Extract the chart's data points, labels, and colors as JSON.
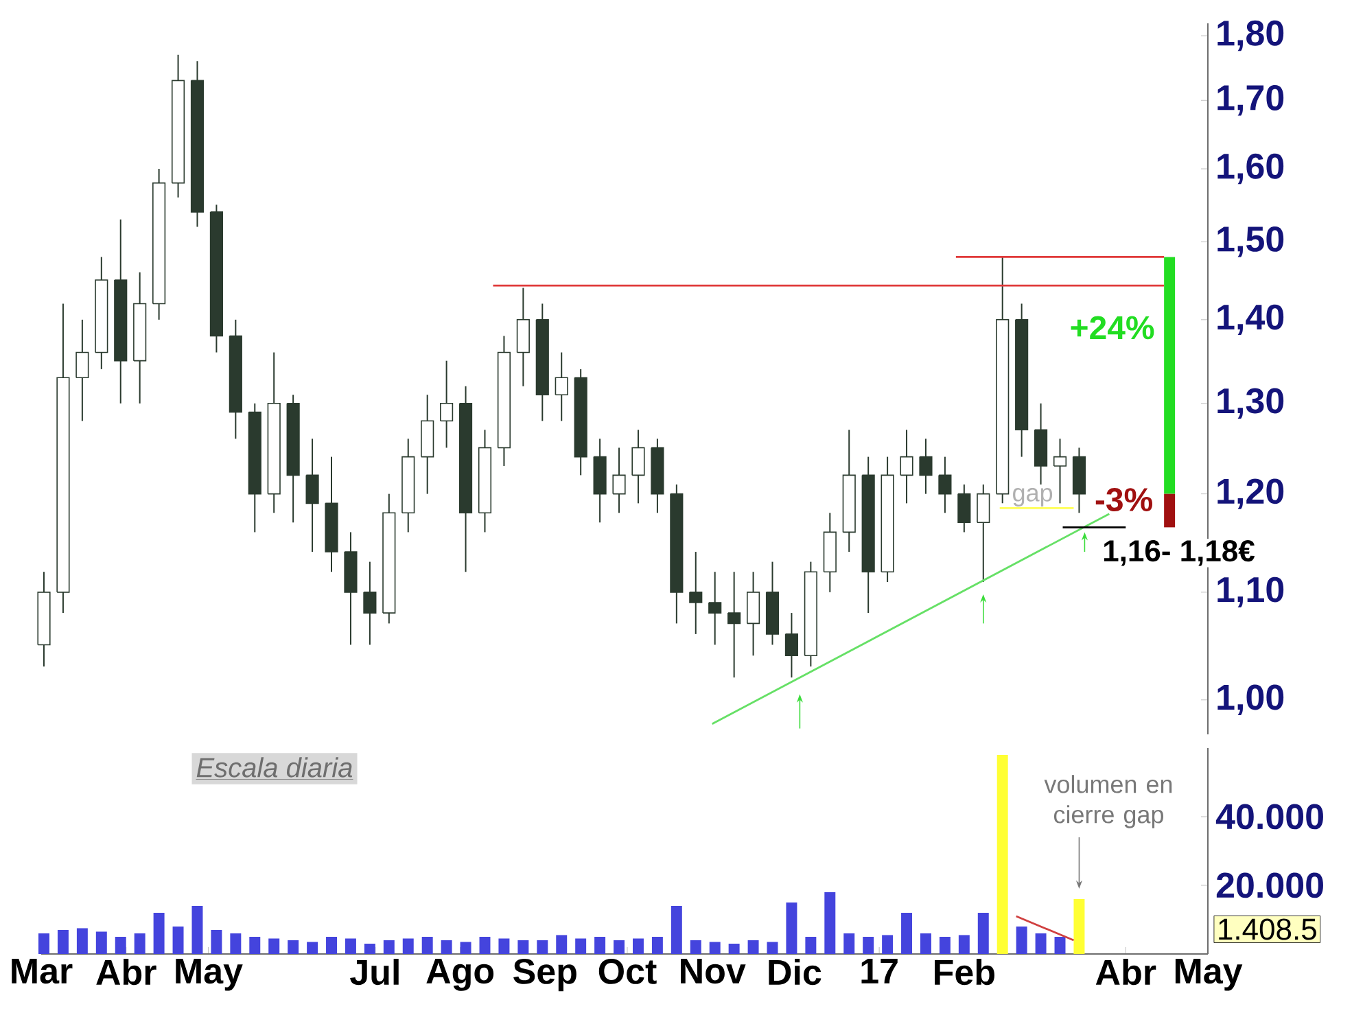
{
  "chart_data": [
    {
      "type": "candlestick",
      "log": true,
      "tick_labels": "y",
      "xlim": [
        "2016-03-01",
        "2017-05-01"
      ],
      "ylim": [
        0.97,
        1.82
      ],
      "yticks": [
        {
          "value": 1.0,
          "label": "1,00"
        },
        {
          "value": 1.1,
          "label": "1,10"
        },
        {
          "value": 1.2,
          "label": "1,20"
        },
        {
          "value": 1.3,
          "label": "1,30"
        },
        {
          "value": 1.4,
          "label": "1,40"
        },
        {
          "value": 1.5,
          "label": "1,50"
        },
        {
          "value": 1.6,
          "label": "1,60"
        },
        {
          "value": 1.7,
          "label": "1,70"
        },
        {
          "value": 1.8,
          "label": "1,80"
        }
      ],
      "series": [
        {
          "color": "#2a3a2e",
          "x": [
            "2016-03-02",
            "2016-03-09",
            "2016-03-16",
            "2016-03-23",
            "2016-03-30",
            "2016-04-06",
            "2016-04-13",
            "2016-04-20",
            "2016-04-27",
            "2016-05-04",
            "2016-05-11",
            "2016-05-18",
            "2016-05-25",
            "2016-06-01",
            "2016-06-08",
            "2016-06-15",
            "2016-06-22",
            "2016-06-29",
            "2016-07-06",
            "2016-07-13",
            "2016-07-20",
            "2016-07-27",
            "2016-08-03",
            "2016-08-10",
            "2016-08-17",
            "2016-08-24",
            "2016-08-31",
            "2016-09-07",
            "2016-09-14",
            "2016-09-21",
            "2016-09-28",
            "2016-10-05",
            "2016-10-12",
            "2016-10-19",
            "2016-10-26",
            "2016-11-02",
            "2016-11-09",
            "2016-11-16",
            "2016-11-23",
            "2016-11-30",
            "2016-12-07",
            "2016-12-14",
            "2016-12-21",
            "2016-12-28",
            "2017-01-04",
            "2017-01-11",
            "2017-01-18",
            "2017-01-25",
            "2017-02-01",
            "2017-02-08",
            "2017-02-15",
            "2017-02-22",
            "2017-03-01",
            "2017-03-08",
            "2017-03-15"
          ],
          "ohlc": [
            [
              1.05,
              1.12,
              1.03,
              1.1
            ],
            [
              1.1,
              1.42,
              1.08,
              1.33
            ],
            [
              1.33,
              1.4,
              1.28,
              1.36
            ],
            [
              1.36,
              1.48,
              1.34,
              1.45
            ],
            [
              1.45,
              1.53,
              1.3,
              1.35
            ],
            [
              1.35,
              1.46,
              1.3,
              1.42
            ],
            [
              1.42,
              1.6,
              1.4,
              1.58
            ],
            [
              1.58,
              1.77,
              1.56,
              1.73
            ],
            [
              1.73,
              1.76,
              1.52,
              1.54
            ],
            [
              1.54,
              1.55,
              1.36,
              1.38
            ],
            [
              1.38,
              1.4,
              1.26,
              1.29
            ],
            [
              1.29,
              1.3,
              1.16,
              1.2
            ],
            [
              1.2,
              1.36,
              1.18,
              1.3
            ],
            [
              1.3,
              1.31,
              1.17,
              1.22
            ],
            [
              1.22,
              1.26,
              1.14,
              1.19
            ],
            [
              1.19,
              1.24,
              1.12,
              1.14
            ],
            [
              1.14,
              1.16,
              1.05,
              1.1
            ],
            [
              1.1,
              1.13,
              1.05,
              1.08
            ],
            [
              1.08,
              1.2,
              1.07,
              1.18
            ],
            [
              1.18,
              1.26,
              1.16,
              1.24
            ],
            [
              1.24,
              1.31,
              1.2,
              1.28
            ],
            [
              1.28,
              1.35,
              1.25,
              1.3
            ],
            [
              1.3,
              1.32,
              1.12,
              1.18
            ],
            [
              1.18,
              1.27,
              1.16,
              1.25
            ],
            [
              1.25,
              1.38,
              1.23,
              1.36
            ],
            [
              1.36,
              1.44,
              1.32,
              1.4
            ],
            [
              1.4,
              1.42,
              1.28,
              1.31
            ],
            [
              1.31,
              1.36,
              1.28,
              1.33
            ],
            [
              1.33,
              1.34,
              1.22,
              1.24
            ],
            [
              1.24,
              1.26,
              1.17,
              1.2
            ],
            [
              1.2,
              1.25,
              1.18,
              1.22
            ],
            [
              1.22,
              1.27,
              1.19,
              1.25
            ],
            [
              1.25,
              1.26,
              1.18,
              1.2
            ],
            [
              1.2,
              1.21,
              1.07,
              1.1
            ],
            [
              1.1,
              1.14,
              1.06,
              1.09
            ],
            [
              1.09,
              1.12,
              1.05,
              1.08
            ],
            [
              1.08,
              1.12,
              1.02,
              1.07
            ],
            [
              1.07,
              1.12,
              1.04,
              1.1
            ],
            [
              1.1,
              1.13,
              1.05,
              1.06
            ],
            [
              1.06,
              1.08,
              1.02,
              1.04
            ],
            [
              1.04,
              1.13,
              1.03,
              1.12
            ],
            [
              1.12,
              1.18,
              1.1,
              1.16
            ],
            [
              1.16,
              1.27,
              1.14,
              1.22
            ],
            [
              1.22,
              1.24,
              1.08,
              1.12
            ],
            [
              1.12,
              1.24,
              1.11,
              1.22
            ],
            [
              1.22,
              1.27,
              1.19,
              1.24
            ],
            [
              1.24,
              1.26,
              1.2,
              1.22
            ],
            [
              1.22,
              1.24,
              1.18,
              1.2
            ],
            [
              1.2,
              1.21,
              1.16,
              1.17
            ],
            [
              1.17,
              1.21,
              1.11,
              1.2
            ],
            [
              1.2,
              1.48,
              1.19,
              1.4
            ],
            [
              1.4,
              1.42,
              1.24,
              1.27
            ],
            [
              1.27,
              1.3,
              1.21,
              1.23
            ],
            [
              1.23,
              1.26,
              1.19,
              1.24
            ],
            [
              1.24,
              1.25,
              1.18,
              1.2
            ]
          ]
        },
        {
          "type": "line",
          "color": "#e03a3a",
          "x": [
            "2016-08-13",
            "2017-04-15"
          ],
          "values": [
            1.443,
            1.443
          ]
        },
        {
          "type": "line",
          "color": "#e03a3a",
          "x": [
            "2017-01-29",
            "2017-04-15"
          ],
          "values": [
            1.48,
            1.48
          ]
        },
        {
          "type": "line",
          "color": "#66e066",
          "x": [
            "2016-11-01",
            "2017-03-26"
          ],
          "values": [
            0.979,
            1.179
          ]
        },
        {
          "type": "line",
          "color": "#ffff55",
          "x": [
            "2017-02-14",
            "2017-03-13"
          ],
          "values": [
            1.185,
            1.185
          ]
        },
        {
          "type": "line",
          "color": "#000000",
          "x": [
            "2017-03-09",
            "2017-04-01"
          ],
          "values": [
            1.165,
            1.165
          ]
        },
        {
          "type": "bar",
          "color": "#22dd22",
          "x": [
            "2017-04-17"
          ],
          "base": [
            1.2
          ],
          "values": [
            0.28
          ]
        },
        {
          "type": "bar",
          "color": "#a01010",
          "x": [
            "2017-04-17"
          ],
          "base": [
            1.165
          ],
          "values": [
            0.035
          ]
        }
      ],
      "annotations": [
        "+24%",
        "-3%",
        "1,16- 1,18€",
        {
          "text": "gap",
          "x": "2017-02-26",
          "y": 1.185
        }
      ]
    },
    {
      "type": "bar",
      "xlim": [
        "2016-03-01",
        "2017-05-01"
      ],
      "xticks": [
        {
          "value": "2016-03-01",
          "label": "Mar"
        },
        {
          "value": "2016-04-01",
          "label": "Abr"
        },
        {
          "value": "2016-05-01",
          "label": "May"
        },
        {
          "value": "2016-07-01",
          "label": "Jul"
        },
        {
          "value": "2016-08-01",
          "label": "Ago"
        },
        {
          "value": "2016-09-01",
          "label": "Sep"
        },
        {
          "value": "2016-10-01",
          "label": "Oct"
        },
        {
          "value": "2016-11-01",
          "label": "Nov"
        },
        {
          "value": "2016-12-01",
          "label": "Dic"
        },
        {
          "value": "2017-01-01",
          "label": "17"
        },
        {
          "value": "2017-02-01",
          "label": "Feb"
        },
        {
          "value": "2017-04-01",
          "label": "Abr"
        },
        {
          "value": "2017-05-01",
          "label": "May"
        }
      ],
      "ylim": [
        0,
        60000
      ],
      "yticks": [
        {
          "value": 20000,
          "label": "20.000"
        },
        {
          "value": 40000,
          "label": "40.000"
        }
      ],
      "series": [
        {
          "x": [
            "2016-03-02",
            "2016-03-09",
            "2016-03-16",
            "2016-03-23",
            "2016-03-30",
            "2016-04-06",
            "2016-04-13",
            "2016-04-20",
            "2016-04-27",
            "2016-05-04",
            "2016-05-11",
            "2016-05-18",
            "2016-05-25",
            "2016-06-01",
            "2016-06-08",
            "2016-06-15",
            "2016-06-22",
            "2016-06-29",
            "2016-07-06",
            "2016-07-13",
            "2016-07-20",
            "2016-07-27",
            "2016-08-03",
            "2016-08-10",
            "2016-08-17",
            "2016-08-24",
            "2016-08-31",
            "2016-09-07",
            "2016-09-14",
            "2016-09-21",
            "2016-09-28",
            "2016-10-05",
            "2016-10-12",
            "2016-10-19",
            "2016-10-26",
            "2016-11-02",
            "2016-11-09",
            "2016-11-16",
            "2016-11-23",
            "2016-11-30",
            "2016-12-07",
            "2016-12-14",
            "2016-12-21",
            "2016-12-28",
            "2017-01-04",
            "2017-01-11",
            "2017-01-18",
            "2017-01-25",
            "2017-02-01",
            "2017-02-08",
            "2017-02-15",
            "2017-02-22",
            "2017-03-01",
            "2017-03-08",
            "2017-03-15"
          ],
          "values": [
            6000,
            7000,
            7500,
            6500,
            5000,
            6000,
            12000,
            8000,
            14000,
            7000,
            6000,
            5000,
            4500,
            4000,
            3500,
            5000,
            4500,
            3000,
            4000,
            4500,
            5000,
            4000,
            3500,
            5000,
            4500,
            4000,
            4000,
            5500,
            4500,
            5000,
            4000,
            4500,
            5000,
            14000,
            4000,
            3500,
            3000,
            4000,
            3500,
            15000,
            5000,
            18000,
            6000,
            5000,
            5500,
            12000,
            6000,
            5000,
            5500,
            12000,
            58000,
            8000,
            6000,
            5000,
            16000
          ],
          "colors": [
            "#4444dd",
            "#4444dd",
            "#4444dd",
            "#4444dd",
            "#4444dd",
            "#4444dd",
            "#4444dd",
            "#4444dd",
            "#4444dd",
            "#4444dd",
            "#4444dd",
            "#4444dd",
            "#4444dd",
            "#4444dd",
            "#4444dd",
            "#4444dd",
            "#4444dd",
            "#4444dd",
            "#4444dd",
            "#4444dd",
            "#4444dd",
            "#4444dd",
            "#4444dd",
            "#4444dd",
            "#4444dd",
            "#4444dd",
            "#4444dd",
            "#4444dd",
            "#4444dd",
            "#4444dd",
            "#4444dd",
            "#4444dd",
            "#4444dd",
            "#4444dd",
            "#4444dd",
            "#4444dd",
            "#4444dd",
            "#4444dd",
            "#4444dd",
            "#4444dd",
            "#4444dd",
            "#4444dd",
            "#4444dd",
            "#4444dd",
            "#4444dd",
            "#4444dd",
            "#4444dd",
            "#4444dd",
            "#4444dd",
            "#4444dd",
            "#ffff33",
            "#4444dd",
            "#4444dd",
            "#4444dd",
            "#ffff33"
          ]
        },
        {
          "type": "line",
          "color": "#d04040",
          "x": [
            "2017-02-20",
            "2017-03-13"
          ],
          "values": [
            11000,
            4000
          ]
        }
      ],
      "annotations": [
        "Escala diaria",
        "volumen en cierre gap",
        "1.408.5"
      ]
    }
  ]
}
